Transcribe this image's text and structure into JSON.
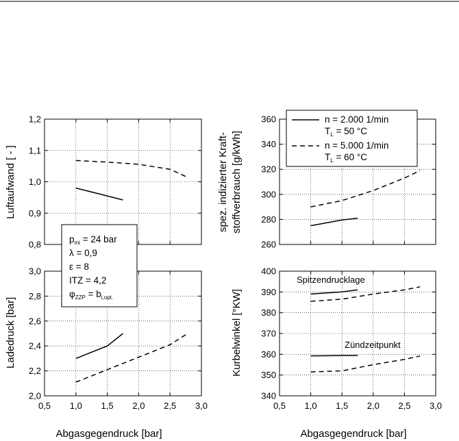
{
  "chart_data": [
    {
      "id": "luftaufwand",
      "type": "line",
      "ylabel": "Luftaufwand [ - ]",
      "xlabel": "",
      "xlim": [
        0.5,
        3.0
      ],
      "ylim": [
        0.8,
        1.2
      ],
      "grid": true,
      "yticks": [
        "0,8",
        "0,9",
        "1,0",
        "1,1",
        "1,2"
      ],
      "xticks": [],
      "series": [
        {
          "key": "n2000",
          "style": "solid",
          "x": [
            1.0,
            1.5,
            1.75
          ],
          "y": [
            0.98,
            0.955,
            0.942
          ]
        },
        {
          "key": "n5000",
          "style": "dashed",
          "x": [
            1.0,
            1.5,
            2.0,
            2.5,
            2.75
          ],
          "y": [
            1.068,
            1.063,
            1.056,
            1.04,
            1.017
          ]
        }
      ]
    },
    {
      "id": "verbrauch",
      "type": "line",
      "ylabel_line1": "spez. indizierter Kraft-",
      "ylabel_line2": "stoffverbrauch [g/kWh]",
      "xlabel": "",
      "xlim": [
        0.5,
        3.0
      ],
      "ylim": [
        260,
        360
      ],
      "grid": true,
      "yticks": [
        "260",
        "280",
        "300",
        "320",
        "340",
        "360"
      ],
      "xticks": [],
      "series": [
        {
          "key": "n2000",
          "style": "solid",
          "x": [
            1.0,
            1.5,
            1.75
          ],
          "y": [
            275,
            279.5,
            281
          ]
        },
        {
          "key": "n5000",
          "style": "dashed",
          "x": [
            1.0,
            1.5,
            2.0,
            2.5,
            2.75
          ],
          "y": [
            290,
            295,
            303,
            313,
            319
          ]
        }
      ]
    },
    {
      "id": "ladedruck",
      "type": "line",
      "ylabel": "Ladedruck [bar]",
      "xlabel": "Abgasgegendruck [bar]",
      "xlim": [
        0.5,
        3.0
      ],
      "ylim": [
        2.0,
        3.0
      ],
      "grid": true,
      "yticks": [
        "2,0",
        "2,2",
        "2,4",
        "2,6",
        "2,8",
        "3,0"
      ],
      "xticks": [
        "0,5",
        "1,0",
        "1,5",
        "2,0",
        "2,5",
        "3,0"
      ],
      "series": [
        {
          "key": "n2000",
          "style": "solid",
          "x": [
            1.0,
            1.5,
            1.75
          ],
          "y": [
            2.3,
            2.4,
            2.5
          ]
        },
        {
          "key": "n5000",
          "style": "dashed",
          "x": [
            1.0,
            1.5,
            2.0,
            2.5,
            2.75
          ],
          "y": [
            2.11,
            2.21,
            2.31,
            2.41,
            2.49
          ]
        }
      ]
    },
    {
      "id": "kurbelwinkel",
      "type": "line",
      "ylabel": "Kurbelwinkel [°KW]",
      "xlabel": "Abgasgegendruck [bar]",
      "xlim": [
        0.5,
        3.0
      ],
      "ylim": [
        340,
        400
      ],
      "grid": true,
      "yticks": [
        "340",
        "350",
        "360",
        "370",
        "380",
        "390",
        "400"
      ],
      "xticks": [
        "0,5",
        "1,0",
        "1,5",
        "2,0",
        "2,5",
        "3,0"
      ],
      "annotations": [
        "Spitzendrucklage",
        "Zündzeitpunkt"
      ],
      "series": [
        {
          "key": "spitze_n2000",
          "style": "solid",
          "x": [
            1.0,
            1.5,
            1.75
          ],
          "y": [
            389,
            390,
            391
          ]
        },
        {
          "key": "spitze_n5000",
          "style": "dashed",
          "x": [
            1.0,
            1.5,
            2.0,
            2.5,
            2.75
          ],
          "y": [
            385.5,
            386.5,
            389,
            391,
            392.5
          ]
        },
        {
          "key": "zuend_n2000",
          "style": "solid",
          "x": [
            1.0,
            1.5,
            1.75
          ],
          "y": [
            359.2,
            359.4,
            359.4
          ]
        },
        {
          "key": "zuend_n5000",
          "style": "dashed",
          "x": [
            1.0,
            1.5,
            2.0,
            2.5,
            2.75
          ],
          "y": [
            351.5,
            352,
            355,
            357.5,
            359.2
          ]
        }
      ]
    }
  ],
  "legend": {
    "entries": [
      {
        "style": "solid",
        "line1": "n = 2.000 1/min",
        "line2_main": "T",
        "line2_sub": "L",
        "line2_rest": " = 50 °C"
      },
      {
        "style": "dashed",
        "line1": "n = 5.000 1/min",
        "line2_main": "T",
        "line2_sub": "L",
        "line2_rest": " = 60 °C"
      }
    ]
  },
  "conditions": {
    "pmi_main": "p",
    "pmi_sub": "mi",
    "pmi_rest": " = 24 bar",
    "lambda": "λ = 0,9",
    "epsilon": "ε = 8",
    "itz": "ITZ = 4,2",
    "phi_main": "φ",
    "phi_sub": "ZZP",
    "phi_mid": " = b",
    "phi_sub2": "i,opt."
  }
}
